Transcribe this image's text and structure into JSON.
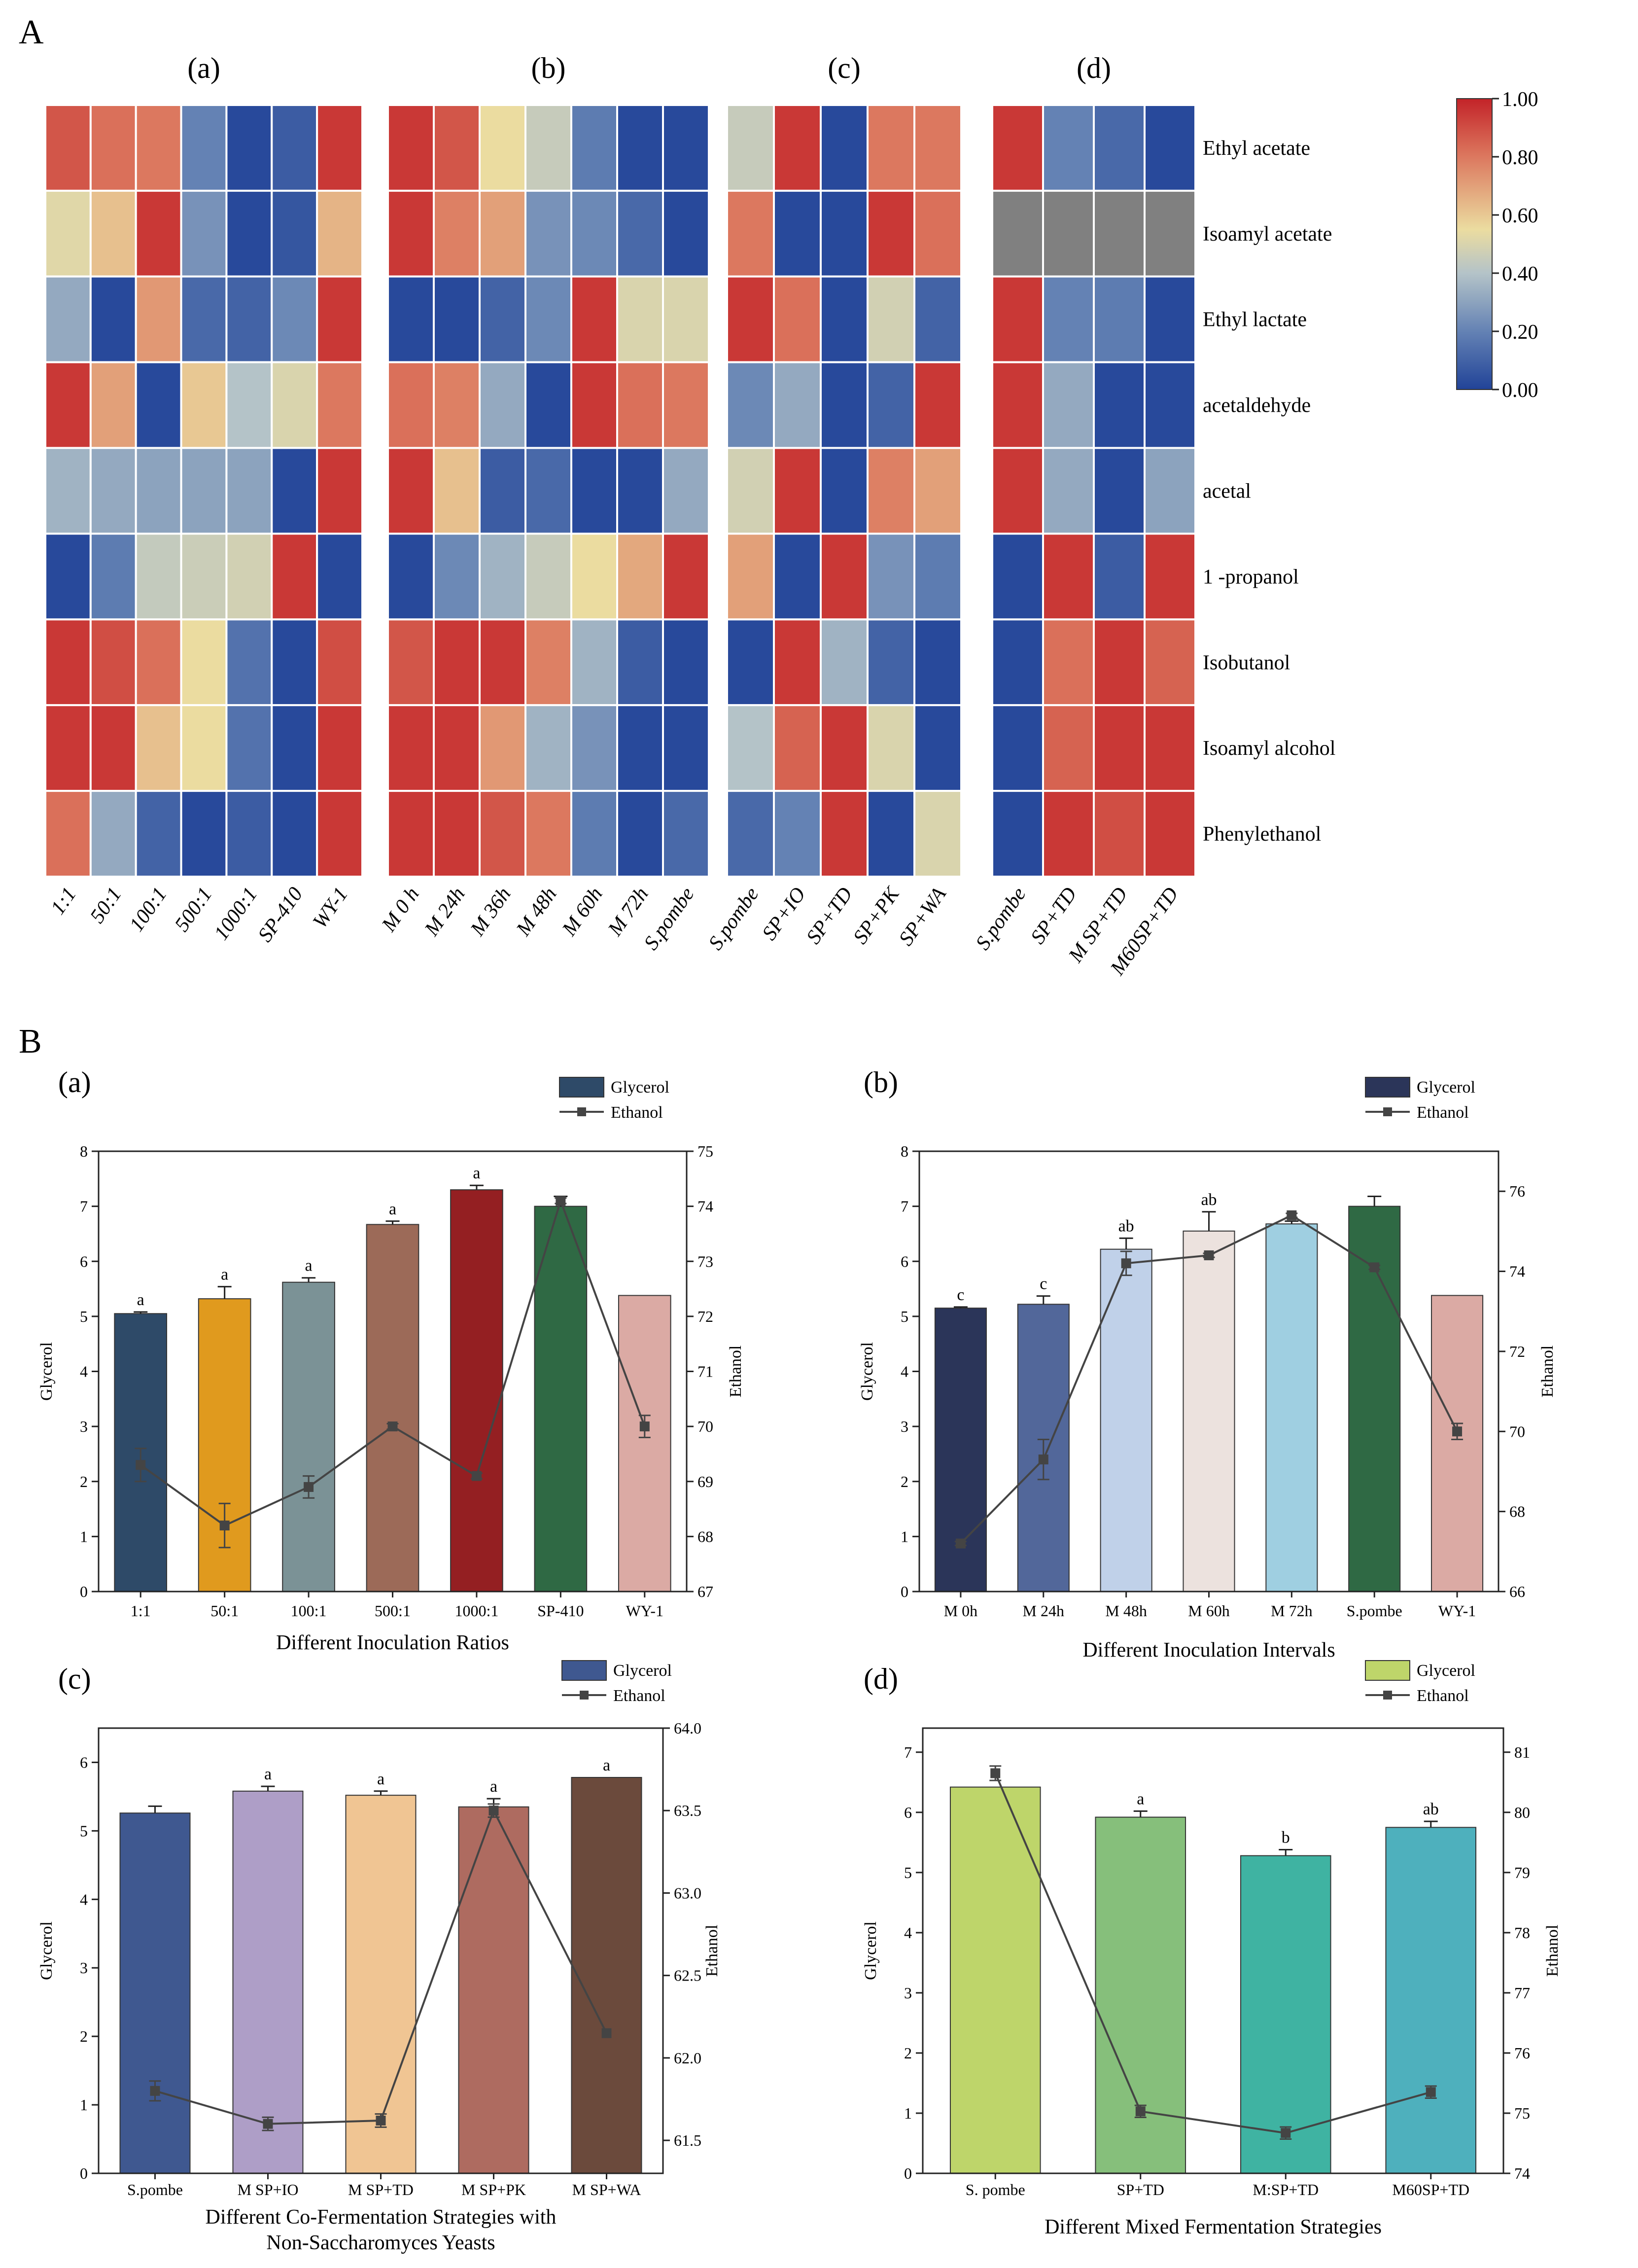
{
  "panel_labels": {
    "A": "A",
    "B": "B"
  },
  "chart_data": [
    {
      "type": "heatmap",
      "panel": "A(a)",
      "title": "(a)",
      "columns": [
        "1:1",
        "50:1",
        "100:1",
        "500:1",
        "1000:1",
        "SP-410",
        "WY-1"
      ],
      "rows": [
        "Ethyl acetate",
        "Isoamyl acetate",
        "Ethyl lactate",
        "acetaldehyde",
        "acetal",
        "1 -propanol",
        "Isobutanol",
        "Isoamyl alcohol",
        "Phenylethanol"
      ],
      "values": [
        [
          0.88,
          0.82,
          0.8,
          0.2,
          0.02,
          0.08,
          0.95
        ],
        [
          0.52,
          0.62,
          0.95,
          0.25,
          0.02,
          0.06,
          0.65
        ],
        [
          0.32,
          0.02,
          0.72,
          0.12,
          0.1,
          0.22,
          0.95
        ],
        [
          0.95,
          0.7,
          0.02,
          0.6,
          0.4,
          0.5,
          0.8
        ],
        [
          0.35,
          0.32,
          0.3,
          0.3,
          0.3,
          0.02,
          0.95
        ],
        [
          0.02,
          0.18,
          0.44,
          0.46,
          0.48,
          0.95,
          0.02
        ],
        [
          0.95,
          0.9,
          0.82,
          0.55,
          0.15,
          0.02,
          0.9
        ],
        [
          0.95,
          0.95,
          0.62,
          0.55,
          0.15,
          0.02,
          0.95
        ],
        [
          0.82,
          0.32,
          0.1,
          0.02,
          0.08,
          0.02,
          0.95
        ]
      ]
    },
    {
      "type": "heatmap",
      "panel": "A(b)",
      "title": "(b)",
      "columns": [
        "M 0 h",
        "M 24h",
        "M 36h",
        "M 48h",
        "M 60h",
        "M 72h",
        "S.pombe"
      ],
      "rows": [
        "Ethyl acetate",
        "Isoamyl acetate",
        "Ethyl lactate",
        "acetaldehyde",
        "acetal",
        "1 -propanol",
        "Isobutanol",
        "Isoamyl alcohol",
        "Phenylethanol"
      ],
      "values": [
        [
          0.95,
          0.88,
          0.55,
          0.45,
          0.18,
          0.02,
          0.02
        ],
        [
          0.95,
          0.78,
          0.7,
          0.25,
          0.22,
          0.12,
          0.02
        ],
        [
          0.02,
          0.02,
          0.1,
          0.22,
          0.95,
          0.5,
          0.5
        ],
        [
          0.82,
          0.78,
          0.32,
          0.02,
          0.95,
          0.82,
          0.8
        ],
        [
          0.95,
          0.62,
          0.08,
          0.12,
          0.02,
          0.02,
          0.32
        ],
        [
          0.02,
          0.22,
          0.35,
          0.45,
          0.55,
          0.68,
          0.95
        ],
        [
          0.88,
          0.95,
          0.95,
          0.78,
          0.35,
          0.08,
          0.02
        ],
        [
          0.95,
          0.95,
          0.72,
          0.35,
          0.25,
          0.02,
          0.02
        ],
        [
          0.95,
          0.95,
          0.88,
          0.8,
          0.18,
          0.02,
          0.12
        ]
      ]
    },
    {
      "type": "heatmap",
      "panel": "A(c)",
      "title": "(c)",
      "columns": [
        "S.pombe",
        "SP+IO",
        "SP+TD",
        "SP+PK",
        "SP+WA"
      ],
      "rows": [
        "Ethyl acetate",
        "Isoamyl acetate",
        "Ethyl lactate",
        "acetaldehyde",
        "acetal",
        "1 -propanol",
        "Isobutanol",
        "Isoamyl alcohol",
        "Phenylethanol"
      ],
      "values": [
        [
          0.45,
          0.95,
          0.02,
          0.8,
          0.8
        ],
        [
          0.8,
          0.02,
          0.02,
          0.95,
          0.82
        ],
        [
          0.95,
          0.82,
          0.02,
          0.48,
          0.1
        ],
        [
          0.22,
          0.32,
          0.02,
          0.1,
          0.95
        ],
        [
          0.48,
          0.95,
          0.02,
          0.78,
          0.7
        ],
        [
          0.7,
          0.02,
          0.95,
          0.25,
          0.18
        ],
        [
          0.02,
          0.95,
          0.35,
          0.1,
          0.02
        ],
        [
          0.4,
          0.85,
          0.95,
          0.5,
          0.02
        ],
        [
          0.12,
          0.2,
          0.95,
          0.02,
          0.5
        ]
      ]
    },
    {
      "type": "heatmap",
      "panel": "A(d)",
      "title": "(d)",
      "columns": [
        "S.pombe",
        "SP+TD",
        "M SP+TD",
        "M60SP+TD"
      ],
      "rows": [
        "Ethyl acetate",
        "Isoamyl acetate",
        "Ethyl lactate",
        "acetaldehyde",
        "acetal",
        "1 -propanol",
        "Isobutanol",
        "Isoamyl alcohol",
        "Phenylethanol"
      ],
      "values": [
        [
          0.95,
          0.2,
          0.12,
          0.02
        ],
        [
          null,
          null,
          null,
          null
        ],
        [
          0.95,
          0.2,
          0.18,
          0.02
        ],
        [
          0.95,
          0.32,
          0.02,
          0.02
        ],
        [
          0.95,
          0.32,
          0.02,
          0.3
        ],
        [
          0.02,
          0.95,
          0.08,
          0.95
        ],
        [
          0.02,
          0.82,
          0.95,
          0.85
        ],
        [
          0.02,
          0.85,
          0.95,
          0.95
        ],
        [
          0.02,
          0.95,
          0.9,
          0.95
        ]
      ],
      "colorbar": {
        "min": 0,
        "max": 1,
        "ticks": [
          "0.00",
          "0.20",
          "0.40",
          "0.60",
          "0.80",
          "1.00"
        ]
      }
    },
    {
      "type": "bar",
      "panel": "B(a)",
      "title": "(a)",
      "categories": [
        "1:1",
        "50:1",
        "100:1",
        "500:1",
        "1000:1",
        "SP-410",
        "WY-1"
      ],
      "series": [
        {
          "name": "Glycerol",
          "axis": "left",
          "values": [
            5.05,
            5.32,
            5.62,
            6.67,
            7.3,
            7.0,
            5.38
          ],
          "errors": [
            0.03,
            0.22,
            0.08,
            0.06,
            0.08,
            0.18,
            0.0
          ],
          "colors": [
            "#2e4a68",
            "#e09a1e",
            "#7b9296",
            "#9c6a58",
            "#941f22",
            "#2f6944",
            "#dbaaa4"
          ],
          "letters": [
            "a",
            "a",
            "a",
            "a",
            "a",
            "",
            ""
          ]
        },
        {
          "name": "Ethanol",
          "axis": "right",
          "type": "line",
          "values": [
            69.3,
            68.2,
            68.9,
            70.0,
            69.1,
            74.1,
            70.0
          ],
          "errors": [
            0.3,
            0.4,
            0.2,
            0.05,
            0.05,
            0.05,
            0.2
          ]
        }
      ],
      "xlabel": "Different Inoculation Ratios",
      "ylabel": "Glycerol",
      "y2label": "Ethanol",
      "ylim": [
        0,
        8
      ],
      "y2lim": [
        67,
        75
      ],
      "yticks": [
        "0",
        "1",
        "2",
        "3",
        "4",
        "5",
        "6",
        "7",
        "8"
      ],
      "y2ticks": [
        "67",
        "68",
        "69",
        "70",
        "71",
        "72",
        "73",
        "74",
        "75"
      ],
      "legend": [
        "Glycerol",
        "Ethanol"
      ],
      "legend_position": "top-right"
    },
    {
      "type": "bar",
      "panel": "B(b)",
      "title": "(b)",
      "categories": [
        "M 0h",
        "M 24h",
        "M 48h",
        "M 60h",
        "M 72h",
        "S.pombe",
        "WY-1"
      ],
      "series": [
        {
          "name": "Glycerol",
          "axis": "left",
          "values": [
            5.15,
            5.22,
            6.22,
            6.55,
            6.68,
            7.0,
            5.38
          ],
          "errors": [
            0.02,
            0.15,
            0.2,
            0.35,
            0.05,
            0.18,
            0.0
          ],
          "colors": [
            "#2b3559",
            "#52679a",
            "#c0d1e9",
            "#ece2de",
            "#9fcfe1",
            "#2f6944",
            "#dbaaa4"
          ],
          "letters": [
            "c",
            "c",
            "ab",
            "ab",
            "",
            "",
            ""
          ]
        },
        {
          "name": "Ethanol",
          "axis": "right",
          "type": "line",
          "values": [
            67.2,
            69.3,
            74.2,
            74.4,
            75.4,
            74.1,
            70.0
          ],
          "errors": [
            0.05,
            0.5,
            0.3,
            0.05,
            0.05,
            0.05,
            0.2
          ]
        }
      ],
      "xlabel": "Different Inoculation Intervals",
      "ylabel": "Glycerol",
      "y2label": "Ethanol",
      "ylim": [
        0,
        8
      ],
      "y2lim": [
        66,
        77
      ],
      "yticks": [
        "0",
        "1",
        "2",
        "3",
        "4",
        "5",
        "6",
        "7",
        "8"
      ],
      "y2ticks": [
        "66",
        "68",
        "70",
        "72",
        "74",
        "76"
      ],
      "legend": [
        "Glycerol",
        "Ethanol"
      ],
      "legend_position": "top-right"
    },
    {
      "type": "bar",
      "panel": "B(c)",
      "title": "(c)",
      "categories": [
        "S.pombe",
        "M SP+IO",
        "M SP+TD",
        "M SP+PK",
        "M SP+WA"
      ],
      "series": [
        {
          "name": "Glycerol",
          "axis": "left",
          "values": [
            5.26,
            5.58,
            5.52,
            5.35,
            5.78
          ],
          "errors": [
            0.1,
            0.07,
            0.06,
            0.12,
            0.0
          ],
          "colors": [
            "#3f5890",
            "#ae9ec7",
            "#f0c593",
            "#ae6b60",
            "#6b4a3c"
          ],
          "letters": [
            "",
            "a",
            "a",
            "a",
            "a"
          ]
        },
        {
          "name": "Ethanol",
          "axis": "right",
          "type": "line",
          "values": [
            61.8,
            61.6,
            61.62,
            63.5,
            62.15
          ],
          "errors": [
            0.06,
            0.04,
            0.04,
            0.04,
            0.0
          ]
        }
      ],
      "xlabel": "Different Co-Fermentation Strategies with",
      "xlabel2": "Non-Saccharomyces Yeasts",
      "ylabel": "Glycerol",
      "y2label": "Ethanol",
      "ylim": [
        0,
        6.5
      ],
      "y2lim": [
        61.3,
        64.0
      ],
      "yticks": [
        "0",
        "1",
        "2",
        "3",
        "4",
        "5",
        "6"
      ],
      "y2ticks": [
        "61.5",
        "62.0",
        "62.5",
        "63.0",
        "63.5",
        "64.0"
      ],
      "legend": [
        "Glycerol",
        "Ethanol"
      ],
      "legend_position": "top-right"
    },
    {
      "type": "bar",
      "panel": "B(d)",
      "title": "(d)",
      "categories": [
        "S. pombe",
        "SP+TD",
        "M:SP+TD",
        "M60SP+TD"
      ],
      "series": [
        {
          "name": "Glycerol",
          "axis": "left",
          "values": [
            6.42,
            5.92,
            5.28,
            5.75
          ],
          "errors": [
            0.0,
            0.1,
            0.1,
            0.1
          ],
          "colors": [
            "#bed56a",
            "#86bf7b",
            "#3fb3a2",
            "#4eb0bd"
          ],
          "letters": [
            "",
            "a",
            "b",
            "ab"
          ]
        },
        {
          "name": "Ethanol",
          "axis": "right",
          "type": "line",
          "values": [
            80.65,
            75.03,
            74.67,
            75.35
          ],
          "errors": [
            0.12,
            0.1,
            0.1,
            0.1
          ]
        }
      ],
      "xlabel": "Different Mixed Fermentation Strategies",
      "ylabel": "Glycerol",
      "y2label": "Ethanol",
      "ylim": [
        0,
        7.4
      ],
      "y2lim": [
        74,
        81.4
      ],
      "yticks": [
        "0",
        "1",
        "2",
        "3",
        "4",
        "5",
        "6",
        "7"
      ],
      "y2ticks": [
        "74",
        "75",
        "76",
        "77",
        "78",
        "79",
        "80",
        "81"
      ],
      "legend": [
        "Glycerol",
        "Ethanol"
      ],
      "legend_position": "top-right"
    }
  ]
}
